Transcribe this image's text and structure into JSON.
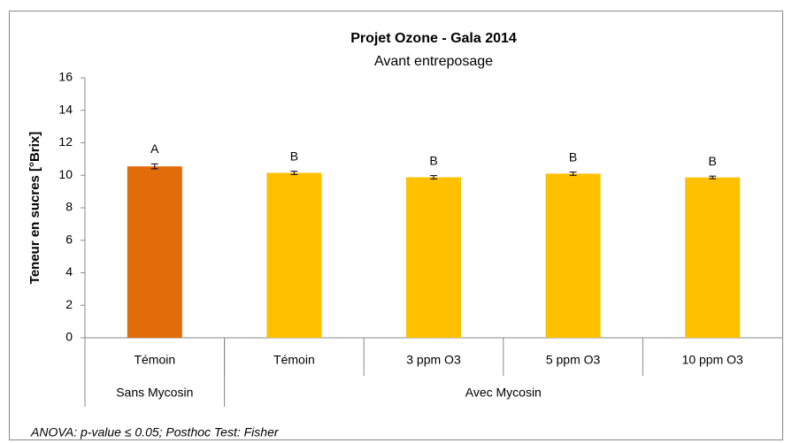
{
  "chart_data": {
    "type": "bar",
    "title": "Projet Ozone - Gala 2014",
    "subtitle": "Avant entreposage",
    "y_label": "Teneur en sucres [°Brix]",
    "categories": [
      "Témoin",
      "Témoin",
      "3 ppm O3",
      "5 ppm O3",
      "10 ppm O3"
    ],
    "groups": [
      {
        "label": "Sans Mycosin",
        "span": 1
      },
      {
        "label": "Avec Mycosin",
        "span": 4
      }
    ],
    "series": [
      {
        "values": [
          10.55,
          10.15,
          9.88,
          10.1,
          9.87
        ],
        "errors": [
          0.15,
          0.1,
          0.1,
          0.1,
          0.08
        ],
        "colors": [
          "#e36c0a",
          "#ffc000",
          "#ffc000",
          "#ffc000",
          "#ffc000"
        ],
        "letters": [
          "A",
          "B",
          "B",
          "B",
          "B"
        ]
      }
    ],
    "ylim": [
      0,
      16
    ],
    "yticks": [
      0,
      2,
      4,
      6,
      8,
      10,
      12,
      14,
      16
    ],
    "grid": false,
    "footnote": "ANOVA: p-value ≤ 0.05; Posthoc Test: Fisher"
  }
}
